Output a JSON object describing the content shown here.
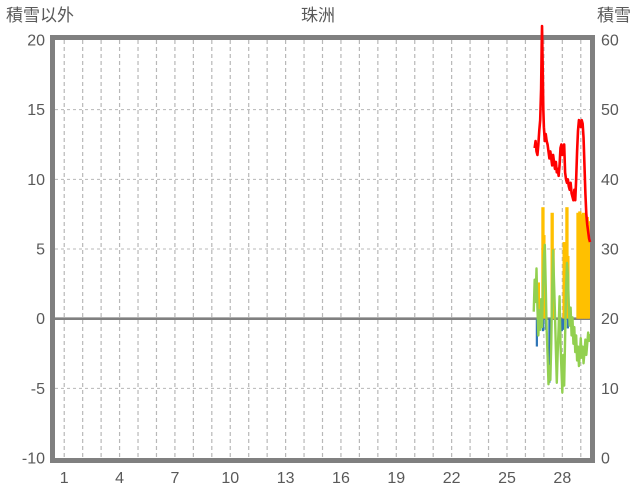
{
  "chart": {
    "title": "珠洲",
    "left_axis_title": "積雪以外",
    "right_axis_title": "積雪"
  },
  "chart_data": {
    "type": "line+bar",
    "title": "珠洲",
    "grid": true,
    "left_axis": {
      "title": "積雪以外",
      "range": [
        -10,
        20
      ],
      "ticks": [
        20,
        15,
        10,
        5,
        0,
        -5,
        -10
      ]
    },
    "right_axis": {
      "title": "積雪",
      "range": [
        0,
        60
      ],
      "ticks": [
        60,
        50,
        40,
        30,
        20,
        10,
        0
      ]
    },
    "x_axis": {
      "range": [
        0.5,
        29.5
      ],
      "tick_labels": [
        1,
        4,
        7,
        10,
        13,
        16,
        19,
        22,
        25,
        28
      ],
      "gridline_every_day": true
    },
    "colors": {
      "red_line": "#ff0000",
      "green_line": "#92d050",
      "orange_bars": "#ffc000",
      "blue_bars": "#2e75b6",
      "border": "#808080",
      "zero_line": "#808080",
      "gridline": "#b8b8b8",
      "text": "#595959",
      "background": "#ffffff"
    },
    "series": [
      {
        "name": "red-line",
        "type": "line",
        "axis": "right",
        "color": "#ff0000",
        "width": 2.6,
        "points": [
          [
            26.5,
            44.5
          ],
          [
            26.55,
            45.5
          ],
          [
            26.6,
            44
          ],
          [
            26.65,
            43.5
          ],
          [
            26.7,
            45
          ],
          [
            26.75,
            47
          ],
          [
            26.8,
            48.5
          ],
          [
            26.85,
            53
          ],
          [
            26.88,
            59
          ],
          [
            26.9,
            62
          ],
          [
            26.93,
            57
          ],
          [
            26.97,
            50
          ],
          [
            27.0,
            47.5
          ],
          [
            27.05,
            45.5
          ],
          [
            27.1,
            46.5
          ],
          [
            27.15,
            45.5
          ],
          [
            27.2,
            45
          ],
          [
            27.25,
            44
          ],
          [
            27.3,
            43
          ],
          [
            27.35,
            44
          ],
          [
            27.4,
            43
          ],
          [
            27.45,
            42
          ],
          [
            27.5,
            43.5
          ],
          [
            27.55,
            42.5
          ],
          [
            27.6,
            41.5
          ],
          [
            27.65,
            42.5
          ],
          [
            27.7,
            41
          ],
          [
            27.75,
            41.5
          ],
          [
            27.8,
            40.5
          ],
          [
            27.85,
            42
          ],
          [
            27.9,
            44.5
          ],
          [
            27.95,
            45
          ],
          [
            28.0,
            43.5
          ],
          [
            28.05,
            44.5
          ],
          [
            28.1,
            45
          ],
          [
            28.15,
            41
          ],
          [
            28.2,
            40
          ],
          [
            28.25,
            39.5
          ],
          [
            28.3,
            40
          ],
          [
            28.35,
            39
          ],
          [
            28.4,
            38.5
          ],
          [
            28.45,
            39.5
          ],
          [
            28.5,
            38
          ],
          [
            28.55,
            37.5
          ],
          [
            28.6,
            37
          ],
          [
            28.65,
            38.5
          ],
          [
            28.7,
            37
          ],
          [
            28.75,
            40
          ],
          [
            28.8,
            44
          ],
          [
            28.85,
            47
          ],
          [
            28.9,
            48.5
          ],
          [
            28.95,
            48
          ],
          [
            29.0,
            47.5
          ],
          [
            29.05,
            48.5
          ],
          [
            29.1,
            48
          ],
          [
            29.15,
            46
          ],
          [
            29.2,
            42
          ],
          [
            29.25,
            38
          ],
          [
            29.3,
            35
          ],
          [
            29.35,
            33.5
          ],
          [
            29.4,
            32.5
          ],
          [
            29.45,
            31.5
          ],
          [
            29.5,
            31
          ]
        ]
      },
      {
        "name": "green-line",
        "type": "line",
        "axis": "left",
        "color": "#92d050",
        "width": 2.4,
        "points": [
          [
            26.45,
            0.5
          ],
          [
            26.5,
            2.8
          ],
          [
            26.55,
            1.2
          ],
          [
            26.6,
            3.6
          ],
          [
            26.65,
            0.8
          ],
          [
            26.7,
            -1.2
          ],
          [
            26.75,
            0.6
          ],
          [
            26.8,
            -0.8
          ],
          [
            26.85,
            1.4
          ],
          [
            26.9,
            -0.6
          ],
          [
            26.95,
            2.2
          ],
          [
            27.0,
            4.4
          ],
          [
            27.05,
            5.3
          ],
          [
            27.1,
            2.4
          ],
          [
            27.15,
            -0.8
          ],
          [
            27.2,
            -2.6
          ],
          [
            27.25,
            -4.7
          ],
          [
            27.3,
            -3.4
          ],
          [
            27.35,
            -4.4
          ],
          [
            27.4,
            -1.8
          ],
          [
            27.45,
            2.2
          ],
          [
            27.5,
            4.9
          ],
          [
            27.55,
            2.6
          ],
          [
            27.6,
            0.4
          ],
          [
            27.65,
            -2.2
          ],
          [
            27.7,
            -4.6
          ],
          [
            27.75,
            -2.4
          ],
          [
            27.8,
            -0.6
          ],
          [
            27.85,
            1.6
          ],
          [
            27.9,
            -1.8
          ],
          [
            27.95,
            -3.6
          ],
          [
            28.0,
            -5.3
          ],
          [
            28.05,
            -2.6
          ],
          [
            28.1,
            -4.8
          ],
          [
            28.15,
            -1.4
          ],
          [
            28.2,
            2.0
          ],
          [
            28.25,
            4.0
          ],
          [
            28.3,
            3.2
          ],
          [
            28.35,
            1.0
          ],
          [
            28.4,
            -0.5
          ],
          [
            28.45,
            0.8
          ],
          [
            28.5,
            -1.2
          ],
          [
            28.55,
            0.1
          ],
          [
            28.6,
            -1.8
          ],
          [
            28.65,
            -0.6
          ],
          [
            28.7,
            -2.4
          ],
          [
            28.75,
            -1.2
          ],
          [
            28.8,
            -3.0
          ],
          [
            28.85,
            -2.0
          ],
          [
            28.9,
            -3.4
          ],
          [
            28.95,
            -2.6
          ],
          [
            29.0,
            -1.4
          ],
          [
            29.05,
            -2.8
          ],
          [
            29.1,
            -2.0
          ],
          [
            29.15,
            -3.2
          ],
          [
            29.2,
            -2.4
          ],
          [
            29.25,
            -1.5
          ],
          [
            29.3,
            -2.6
          ],
          [
            29.35,
            -1.8
          ],
          [
            29.4,
            -1.0
          ],
          [
            29.45,
            -1.6
          ],
          [
            29.5,
            -1.1
          ]
        ]
      },
      {
        "name": "orange-bars",
        "type": "bar",
        "axis": "left",
        "color": "#ffc000",
        "bar_width_days": 0.18,
        "points": [
          [
            26.7,
            2.6
          ],
          [
            26.95,
            8.0
          ],
          [
            27.0,
            6.0
          ],
          [
            27.45,
            7.6
          ],
          [
            27.5,
            5.0
          ],
          [
            28.1,
            5.5
          ],
          [
            28.25,
            8.0
          ],
          [
            28.3,
            4.5
          ],
          [
            28.85,
            7.6
          ],
          [
            28.95,
            7.7
          ],
          [
            29.05,
            7.5
          ],
          [
            29.15,
            7.6
          ],
          [
            29.25,
            7.4
          ],
          [
            29.35,
            7.3
          ],
          [
            29.45,
            7.0
          ]
        ]
      },
      {
        "name": "blue-bars",
        "type": "bar",
        "axis": "left",
        "color": "#2e75b6",
        "bar_width_days": 0.12,
        "points": [
          [
            26.62,
            -2.0
          ],
          [
            26.7,
            -1.1
          ],
          [
            26.85,
            -0.6
          ],
          [
            26.95,
            -0.9
          ],
          [
            27.1,
            -0.8
          ],
          [
            27.3,
            -4.6
          ],
          [
            27.37,
            -1.5
          ],
          [
            27.9,
            -1.2
          ],
          [
            27.97,
            -0.9
          ],
          [
            28.05,
            -0.8
          ],
          [
            28.3,
            -0.7
          ],
          [
            28.37,
            -0.5
          ]
        ]
      }
    ]
  }
}
